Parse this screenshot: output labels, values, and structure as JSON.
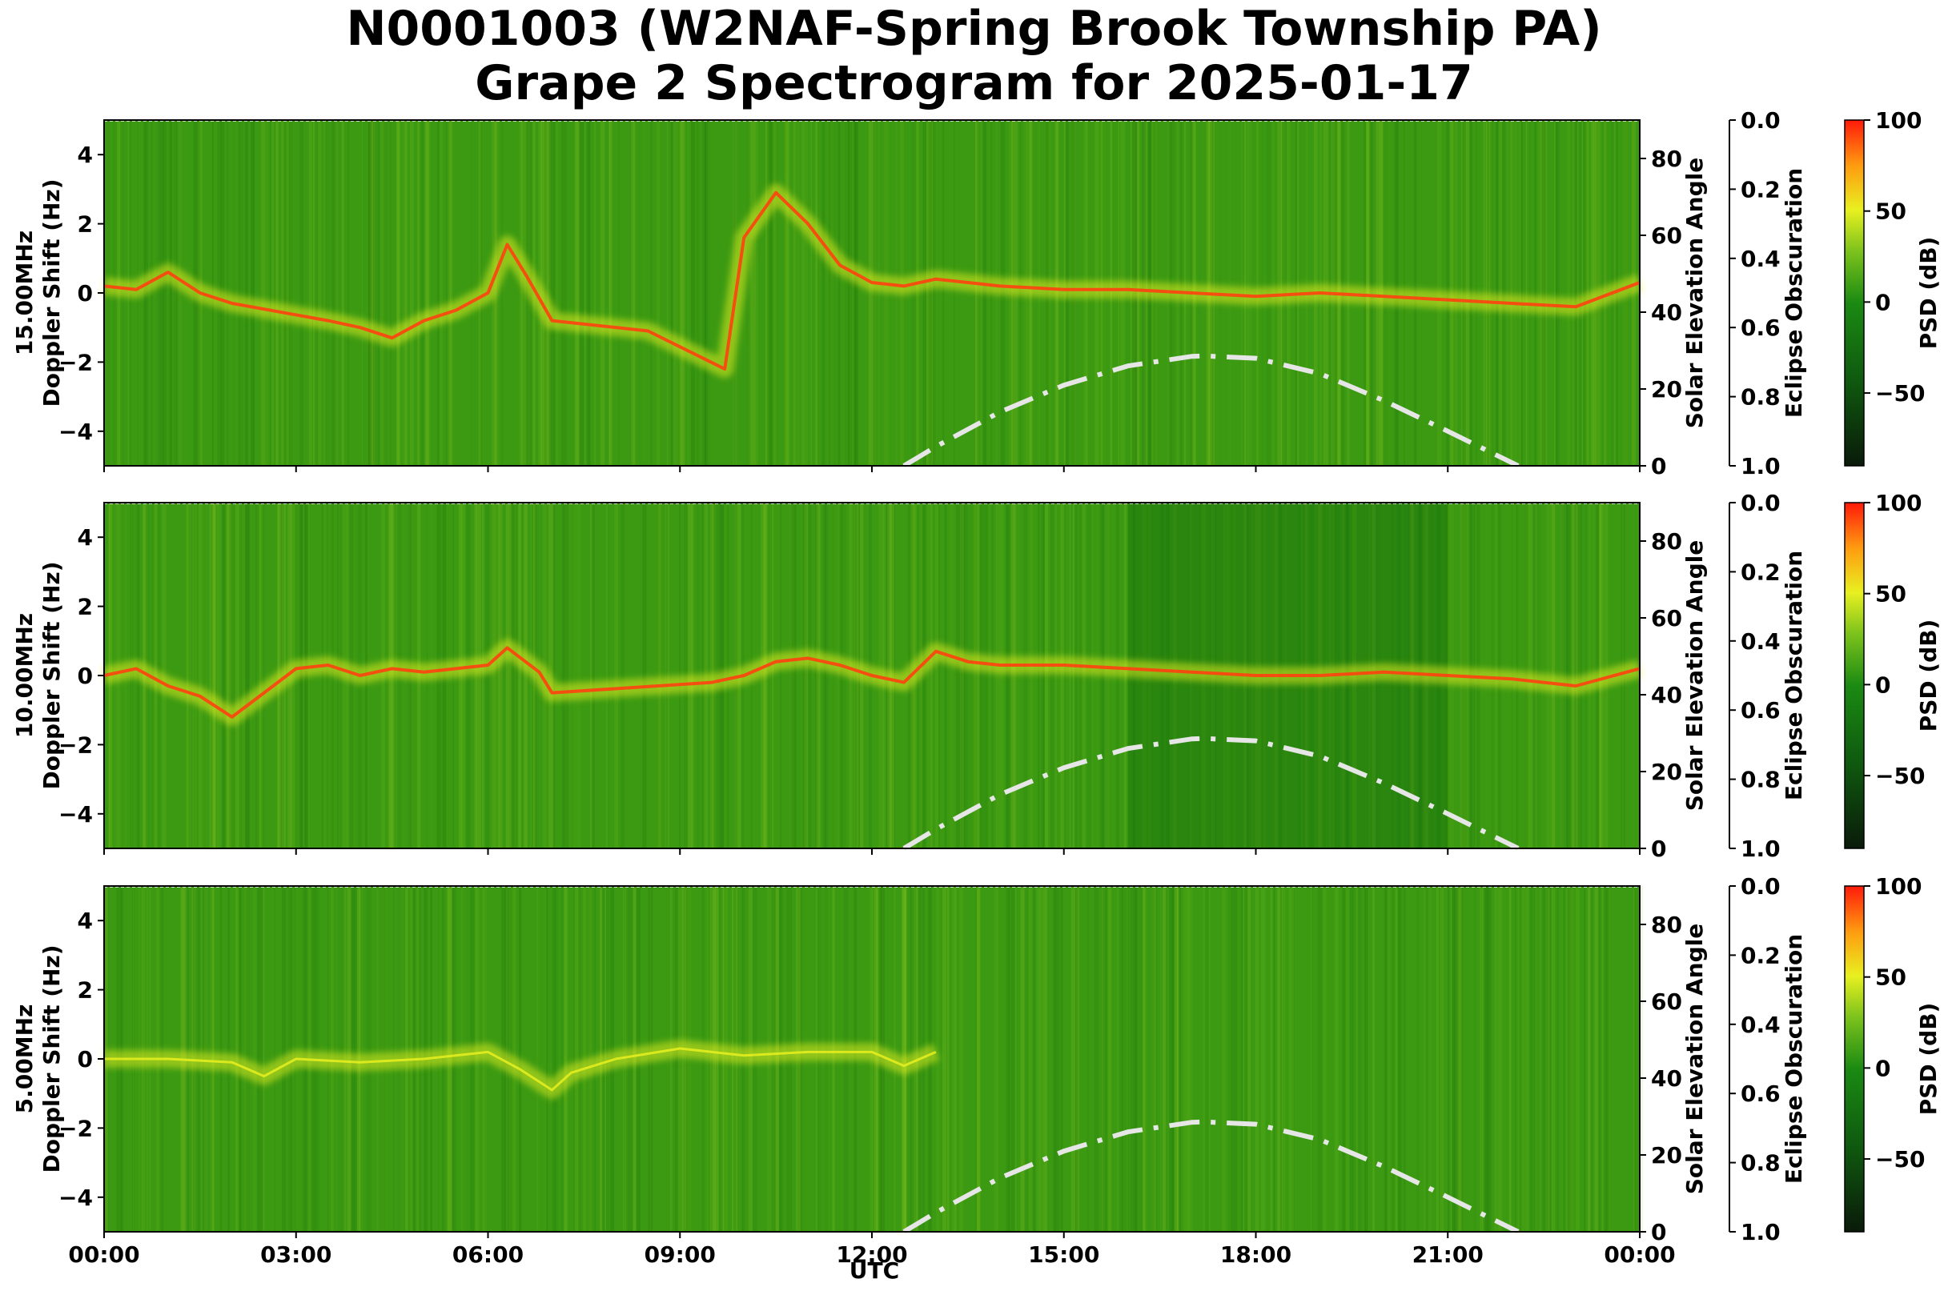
{
  "title": {
    "line1": "N0001003 (W2NAF-Spring Brook Township PA)",
    "line2": "Grape 2 Spectrogram for 2025-01-17"
  },
  "xlabel": "UTC",
  "x_ticks": [
    "00:00",
    "03:00",
    "06:00",
    "09:00",
    "12:00",
    "15:00",
    "18:00",
    "21:00",
    "00:00"
  ],
  "colors": {
    "background_green": "#3c9a12",
    "trace_yellow": "#e8f020",
    "trace_red": "#ff4010",
    "solar_curve": "#e6e6e6"
  },
  "chart_data": [
    {
      "type": "heatmap",
      "panel": "15.00MHz",
      "ylabel_line1": "15.00MHz",
      "ylabel_line2": "Doppler Shift (Hz)",
      "x_range_utc_hours": [
        0,
        24
      ],
      "ylim": [
        -5,
        5
      ],
      "y_ticks": [
        4,
        2,
        0,
        -2,
        -4
      ],
      "right_axis": {
        "label": "Solar Elevation Angle",
        "ylim": [
          0,
          90
        ],
        "ticks": [
          80,
          60,
          40,
          20,
          0
        ]
      },
      "eclipse_axis": {
        "label": "Eclipse Obscuration",
        "ylim": [
          1.0,
          0.0
        ],
        "ticks": [
          "0.0",
          "0.2",
          "0.4",
          "0.6",
          "0.8",
          "1.0"
        ]
      },
      "colorbar": {
        "label": "PSD (dB)",
        "ticks": [
          100,
          50,
          0,
          -50
        ],
        "range": [
          -90,
          100
        ]
      },
      "doppler_trace": {
        "utc_hours": [
          0,
          0.5,
          1,
          1.5,
          2,
          3.5,
          4,
          4.5,
          5,
          5.5,
          6,
          6.3,
          6.6,
          7,
          8.5,
          9.7,
          10,
          10.5,
          11,
          11.5,
          12,
          12.5,
          13,
          13.5,
          14,
          15,
          16,
          17,
          18,
          19,
          20,
          21,
          22,
          23,
          24
        ],
        "doppler_hz": [
          0.2,
          0.1,
          0.6,
          0.0,
          -0.3,
          -0.8,
          -1.0,
          -1.3,
          -0.8,
          -0.5,
          0.0,
          1.4,
          0.5,
          -0.8,
          -1.1,
          -2.2,
          1.6,
          2.9,
          2.0,
          0.8,
          0.3,
          0.2,
          0.4,
          0.3,
          0.2,
          0.1,
          0.1,
          0.0,
          -0.1,
          0.0,
          -0.1,
          -0.2,
          -0.3,
          -0.4,
          0.3
        ],
        "active_from_utc": 0,
        "active_to_utc": 24
      },
      "solar_elevation": {
        "utc_hours": [
          12.5,
          13,
          14,
          15,
          16,
          17,
          17.2,
          18,
          19,
          20,
          21,
          22.1
        ],
        "degrees": [
          0,
          5,
          14,
          21,
          26,
          28.5,
          28.6,
          28,
          24,
          17,
          9,
          0
        ]
      }
    },
    {
      "type": "heatmap",
      "panel": "10.00MHz",
      "ylabel_line1": "10.00MHz",
      "ylabel_line2": "Doppler Shift (Hz)",
      "x_range_utc_hours": [
        0,
        24
      ],
      "ylim": [
        -5,
        5
      ],
      "y_ticks": [
        4,
        2,
        0,
        -2,
        -4
      ],
      "right_axis": {
        "label": "Solar Elevation Angle",
        "ylim": [
          0,
          90
        ],
        "ticks": [
          80,
          60,
          40,
          20,
          0
        ]
      },
      "eclipse_axis": {
        "label": "Eclipse Obscuration",
        "ylim": [
          1.0,
          0.0
        ],
        "ticks": [
          "0.0",
          "0.2",
          "0.4",
          "0.6",
          "0.8",
          "1.0"
        ]
      },
      "colorbar": {
        "label": "PSD (dB)",
        "ticks": [
          100,
          50,
          0,
          -50
        ],
        "range": [
          -90,
          100
        ]
      },
      "doppler_trace": {
        "utc_hours": [
          0,
          0.5,
          1,
          1.5,
          2,
          2.5,
          3,
          3.5,
          4,
          4.5,
          5,
          5.5,
          6,
          6.3,
          6.8,
          7,
          9.5,
          10,
          10.5,
          11,
          11.5,
          12,
          12.5,
          13,
          13.5,
          14,
          15,
          16,
          17,
          18,
          19,
          20,
          21,
          22,
          23,
          24
        ],
        "doppler_hz": [
          0.0,
          0.2,
          -0.3,
          -0.6,
          -1.2,
          -0.5,
          0.2,
          0.3,
          0.0,
          0.2,
          0.1,
          0.2,
          0.3,
          0.8,
          0.1,
          -0.5,
          -0.2,
          0.0,
          0.4,
          0.5,
          0.3,
          0.0,
          -0.2,
          0.7,
          0.4,
          0.3,
          0.3,
          0.2,
          0.1,
          0.0,
          0.0,
          0.1,
          0.0,
          -0.1,
          -0.3,
          0.2
        ],
        "active_from_utc": 0,
        "active_to_utc": 24
      },
      "solar_elevation": {
        "utc_hours": [
          12.5,
          13,
          14,
          15,
          16,
          17,
          17.2,
          18,
          19,
          20,
          21,
          22.1
        ],
        "degrees": [
          0,
          5,
          14,
          21,
          26,
          28.5,
          28.6,
          28,
          24,
          17,
          9,
          0
        ]
      }
    },
    {
      "type": "heatmap",
      "panel": "5.00MHz",
      "ylabel_line1": "5.00MHz",
      "ylabel_line2": "Doppler Shift (Hz)",
      "x_range_utc_hours": [
        0,
        24
      ],
      "ylim": [
        -5,
        5
      ],
      "y_ticks": [
        4,
        2,
        0,
        -2,
        -4
      ],
      "right_axis": {
        "label": "Solar Elevation Angle",
        "ylim": [
          0,
          90
        ],
        "ticks": [
          80,
          60,
          40,
          20,
          0
        ]
      },
      "eclipse_axis": {
        "label": "Eclipse Obscuration",
        "ylim": [
          1.0,
          0.0
        ],
        "ticks": [
          "0.0",
          "0.2",
          "0.4",
          "0.6",
          "0.8",
          "1.0"
        ]
      },
      "colorbar": {
        "label": "PSD (dB)",
        "ticks": [
          100,
          50,
          0,
          -50
        ],
        "range": [
          -90,
          100
        ]
      },
      "doppler_trace": {
        "utc_hours": [
          0,
          1,
          2,
          2.5,
          3,
          4,
          5,
          6,
          6.5,
          7,
          7.3,
          8,
          9,
          10,
          11,
          12,
          12.5,
          13
        ],
        "doppler_hz": [
          0.0,
          0.0,
          -0.1,
          -0.5,
          0.0,
          -0.1,
          0.0,
          0.2,
          -0.3,
          -0.9,
          -0.4,
          0.0,
          0.3,
          0.1,
          0.2,
          0.2,
          -0.2,
          0.2
        ],
        "active_from_utc": 0,
        "active_to_utc": 13.2
      },
      "solar_elevation": {
        "utc_hours": [
          12.5,
          13,
          14,
          15,
          16,
          17,
          17.2,
          18,
          19,
          20,
          21,
          22.1
        ],
        "degrees": [
          0,
          5,
          14,
          21,
          26,
          28.5,
          28.6,
          28,
          24,
          17,
          9,
          0
        ]
      }
    }
  ]
}
